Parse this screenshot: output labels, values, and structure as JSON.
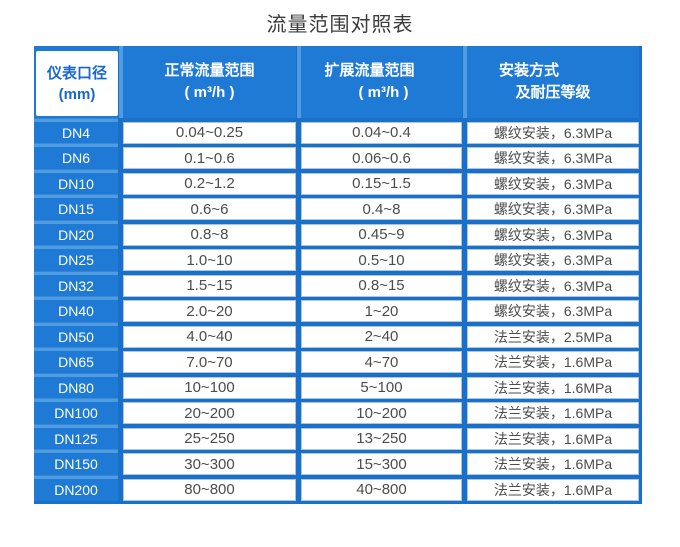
{
  "title": "流量范围对照表",
  "colors": {
    "primary_blue": "#1f7ad6",
    "gap_blue": "#1a6fc9",
    "light_divider": "#4f9ce0",
    "cell_text": "#4c4c4c",
    "header_text": "#ffffff",
    "title_text": "#3c3c3c",
    "diameter_box_text": "#1668cc"
  },
  "table": {
    "headers": [
      {
        "line1": "仪表口径",
        "line2": "(mm)"
      },
      {
        "line1": "正常流量范围",
        "line2": "( m³/h )"
      },
      {
        "line1": "扩展流量范围",
        "line2": "( m³/h )"
      },
      {
        "line1": "安装方式",
        "line2": "及耐压等级"
      }
    ],
    "rows": [
      {
        "dn": "DN4",
        "normal": "0.04~0.25",
        "extended": "0.04~0.4",
        "install": "螺纹安装，6.3MPa"
      },
      {
        "dn": "DN6",
        "normal": "0.1~0.6",
        "extended": "0.06~0.6",
        "install": "螺纹安装，6.3MPa"
      },
      {
        "dn": "DN10",
        "normal": "0.2~1.2",
        "extended": "0.15~1.5",
        "install": "螺纹安装，6.3MPa"
      },
      {
        "dn": "DN15",
        "normal": "0.6~6",
        "extended": "0.4~8",
        "install": "螺纹安装，6.3MPa"
      },
      {
        "dn": "DN20",
        "normal": "0.8~8",
        "extended": "0.45~9",
        "install": "螺纹安装，6.3MPa"
      },
      {
        "dn": "DN25",
        "normal": "1.0~10",
        "extended": "0.5~10",
        "install": "螺纹安装，6.3MPa"
      },
      {
        "dn": "DN32",
        "normal": "1.5~15",
        "extended": "0.8~15",
        "install": "螺纹安装，6.3MPa"
      },
      {
        "dn": "DN40",
        "normal": "2.0~20",
        "extended": "1~20",
        "install": "螺纹安装，6.3MPa"
      },
      {
        "dn": "DN50",
        "normal": "4.0~40",
        "extended": "2~40",
        "install": "法兰安装，2.5MPa"
      },
      {
        "dn": "DN65",
        "normal": "7.0~70",
        "extended": "4~70",
        "install": "法兰安装，1.6MPa"
      },
      {
        "dn": "DN80",
        "normal": "10~100",
        "extended": "5~100",
        "install": "法兰安装，1.6MPa"
      },
      {
        "dn": "DN100",
        "normal": "20~200",
        "extended": "10~200",
        "install": "法兰安装，1.6MPa"
      },
      {
        "dn": "DN125",
        "normal": "25~250",
        "extended": "13~250",
        "install": "法兰安装，1.6MPa"
      },
      {
        "dn": "DN150",
        "normal": "30~300",
        "extended": "15~300",
        "install": "法兰安装，1.6MPa"
      },
      {
        "dn": "DN200",
        "normal": "80~800",
        "extended": "40~800",
        "install": "法兰安装，1.6MPa"
      }
    ]
  }
}
